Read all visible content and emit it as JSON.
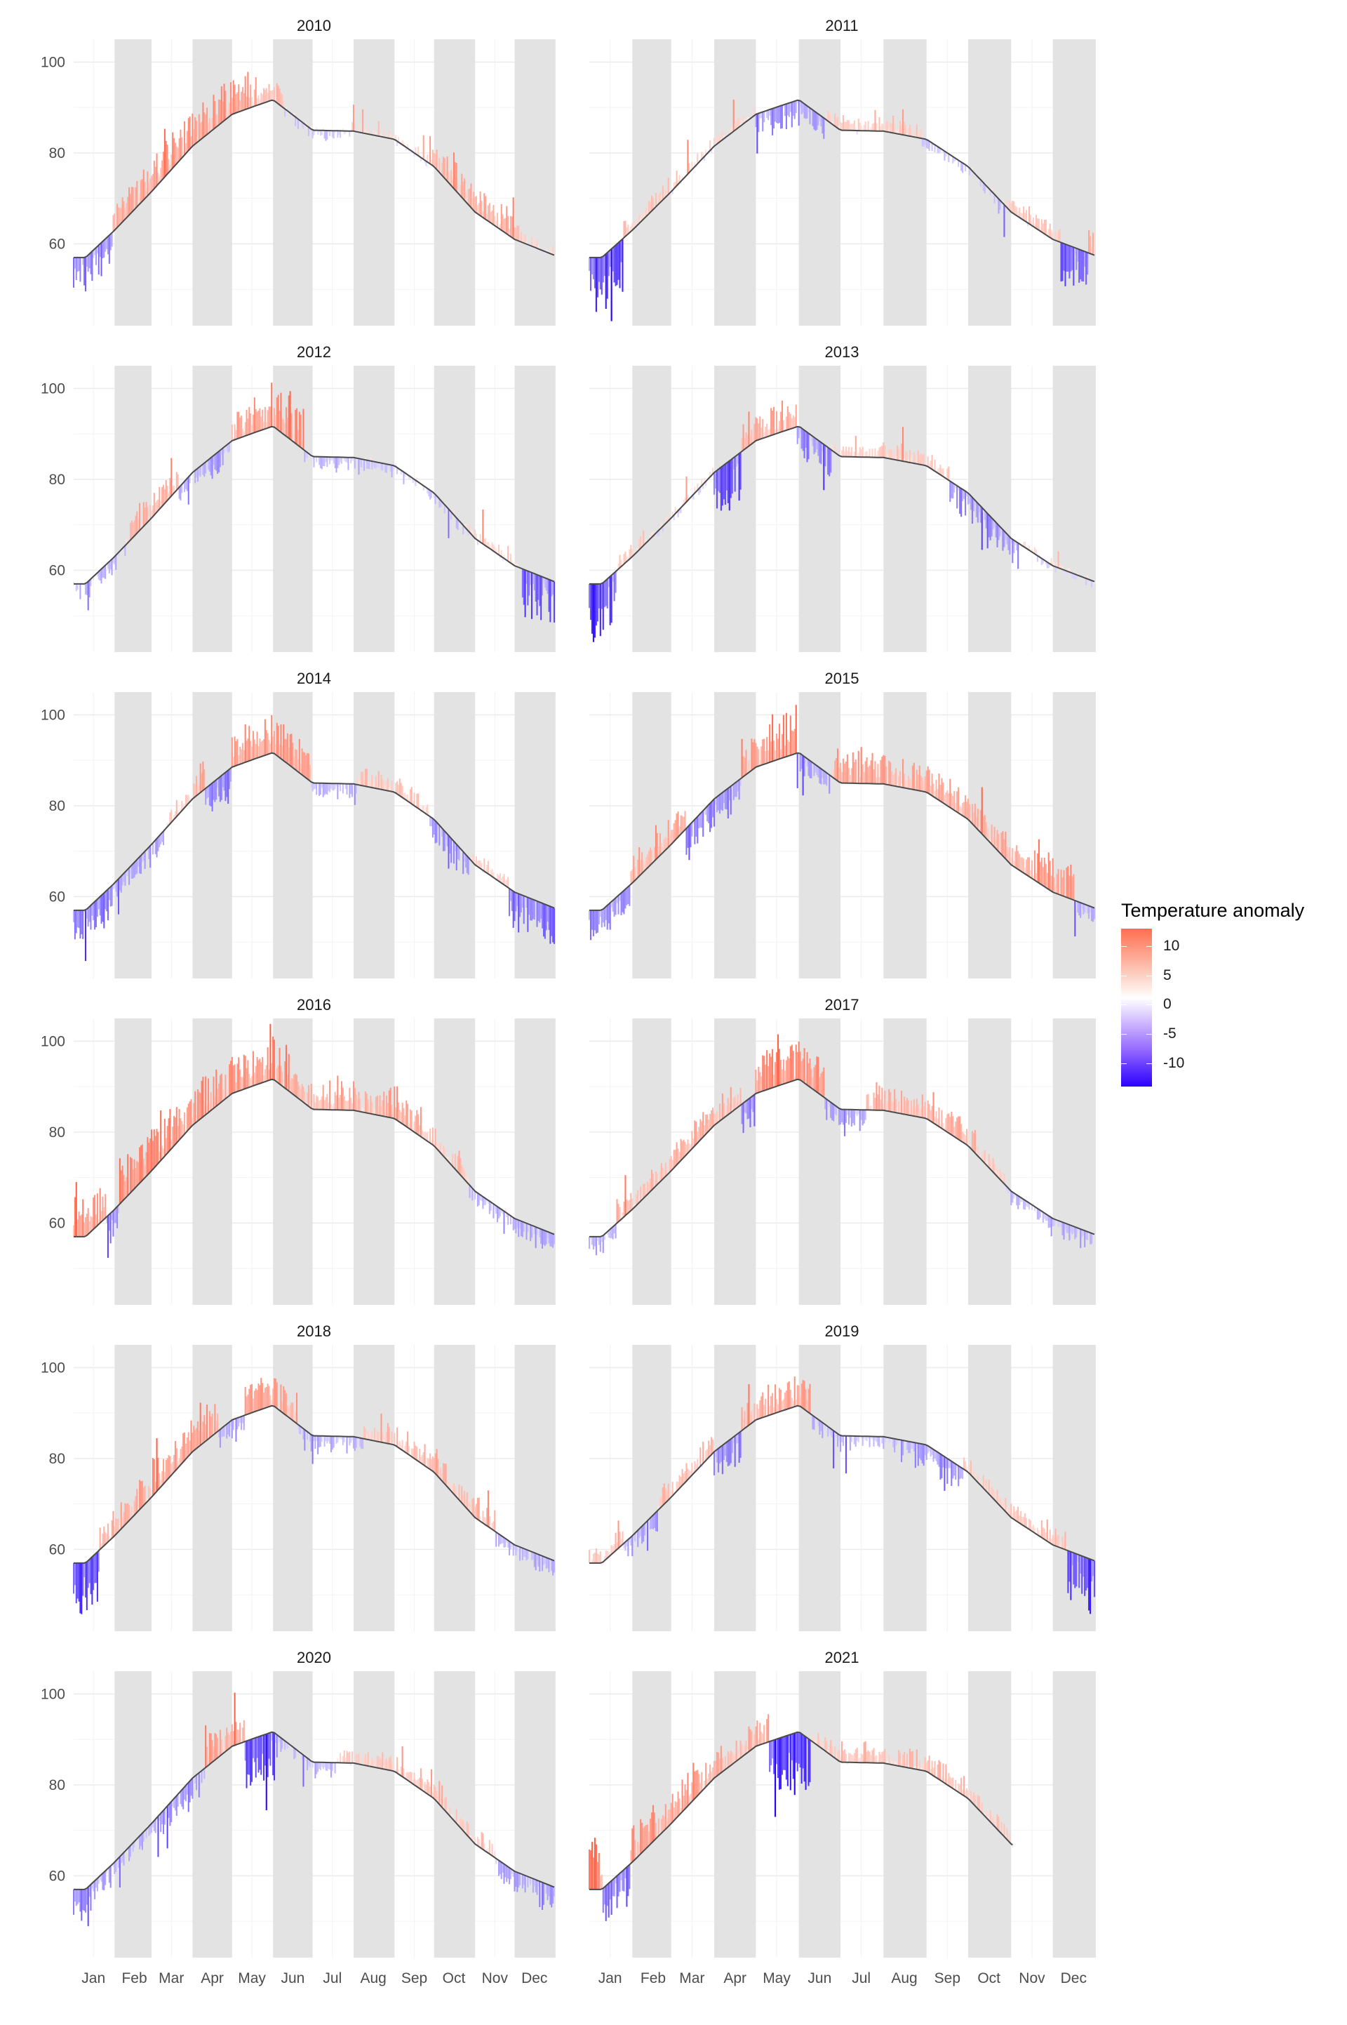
{
  "chart_data": {
    "type": "bar",
    "description_of_marks": "Daily temperature anomaly bars relative to a normal-temperature line, one panel per year",
    "years": [
      "2010",
      "2011",
      "2012",
      "2013",
      "2014",
      "2015",
      "2016",
      "2017",
      "2018",
      "2019",
      "2020",
      "2021"
    ],
    "layout": "facet grid, 2 columns x 6 rows",
    "x_tick_labels": [
      "Jan",
      "Feb",
      "Mar",
      "Apr",
      "May",
      "Jun",
      "Jul",
      "Aug",
      "Sep",
      "Oct",
      "Nov",
      "Dec"
    ],
    "y_ticks": [
      60,
      80,
      100
    ],
    "ylim": [
      42,
      105
    ],
    "normal_line": {
      "days": [
        1,
        10,
        32,
        60,
        91,
        121,
        140,
        152,
        182,
        213,
        244,
        274,
        305,
        335,
        365
      ],
      "values": [
        57,
        57,
        63,
        71.5,
        81.5,
        88.5,
        90.5,
        91.7,
        85,
        84.8,
        83,
        77,
        67,
        61,
        57.5
      ]
    },
    "shaded_months": [
      "Feb",
      "Apr",
      "Jun",
      "Aug",
      "Oct",
      "Dec"
    ],
    "anomaly_profiles": {
      "2010": [
        [
          0,
          30,
          -5
        ],
        [
          31,
          60,
          5
        ],
        [
          61,
          140,
          6
        ],
        [
          141,
          160,
          3
        ],
        [
          161,
          210,
          -1
        ],
        [
          211,
          270,
          1
        ],
        [
          271,
          340,
          4
        ],
        [
          341,
          365,
          1
        ]
      ],
      "2011": [
        [
          0,
          25,
          -11
        ],
        [
          26,
          60,
          2
        ],
        [
          61,
          120,
          1
        ],
        [
          121,
          170,
          -4
        ],
        [
          171,
          240,
          2
        ],
        [
          241,
          300,
          -1
        ],
        [
          301,
          340,
          2
        ],
        [
          341,
          360,
          -7
        ],
        [
          361,
          365,
          5
        ]
      ],
      "2012": [
        [
          0,
          40,
          -2
        ],
        [
          41,
          80,
          4
        ],
        [
          81,
          120,
          -3
        ],
        [
          121,
          150,
          5
        ],
        [
          151,
          175,
          8
        ],
        [
          176,
          240,
          -2
        ],
        [
          241,
          300,
          -1
        ],
        [
          301,
          340,
          1
        ],
        [
          341,
          365,
          -8
        ]
      ],
      "2013": [
        [
          0,
          20,
          -10
        ],
        [
          21,
          40,
          2
        ],
        [
          41,
          90,
          0
        ],
        [
          91,
          110,
          -8
        ],
        [
          111,
          150,
          4
        ],
        [
          151,
          175,
          -5
        ],
        [
          176,
          260,
          2
        ],
        [
          261,
          310,
          -4
        ],
        [
          311,
          365,
          0
        ]
      ],
      "2014": [
        [
          0,
          30,
          -5
        ],
        [
          31,
          70,
          -3
        ],
        [
          71,
          100,
          3
        ],
        [
          101,
          120,
          -5
        ],
        [
          121,
          180,
          6
        ],
        [
          181,
          215,
          -2
        ],
        [
          216,
          270,
          3
        ],
        [
          271,
          300,
          -4
        ],
        [
          301,
          330,
          2
        ],
        [
          331,
          365,
          -6
        ]
      ],
      "2015": [
        [
          0,
          30,
          -5
        ],
        [
          31,
          70,
          4
        ],
        [
          71,
          110,
          -5
        ],
        [
          111,
          130,
          5
        ],
        [
          131,
          150,
          8
        ],
        [
          151,
          175,
          -3
        ],
        [
          176,
          320,
          5
        ],
        [
          321,
          350,
          6
        ],
        [
          351,
          365,
          -2
        ]
      ],
      "2016": [
        [
          0,
          25,
          6
        ],
        [
          26,
          35,
          -5
        ],
        [
          36,
          80,
          8
        ],
        [
          81,
          150,
          6
        ],
        [
          151,
          170,
          8
        ],
        [
          171,
          265,
          4
        ],
        [
          266,
          300,
          2
        ],
        [
          301,
          335,
          -2
        ],
        [
          336,
          365,
          -3
        ]
      ],
      "2017": [
        [
          0,
          20,
          -3
        ],
        [
          21,
          70,
          3
        ],
        [
          71,
          110,
          4
        ],
        [
          111,
          120,
          -6
        ],
        [
          121,
          170,
          7
        ],
        [
          171,
          200,
          -3
        ],
        [
          201,
          280,
          4
        ],
        [
          281,
          300,
          2
        ],
        [
          301,
          330,
          -2
        ],
        [
          331,
          365,
          -3
        ]
      ],
      "2018": [
        [
          0,
          20,
          -9
        ],
        [
          21,
          60,
          4
        ],
        [
          61,
          110,
          6
        ],
        [
          111,
          130,
          -3
        ],
        [
          131,
          170,
          6
        ],
        [
          171,
          220,
          -2
        ],
        [
          221,
          290,
          3
        ],
        [
          291,
          320,
          3
        ],
        [
          321,
          365,
          -2
        ]
      ],
      "2019": [
        [
          0,
          25,
          2
        ],
        [
          26,
          50,
          -3
        ],
        [
          51,
          90,
          3
        ],
        [
          91,
          110,
          -5
        ],
        [
          111,
          160,
          5
        ],
        [
          161,
          230,
          -2
        ],
        [
          231,
          270,
          -4
        ],
        [
          271,
          320,
          2
        ],
        [
          321,
          345,
          3
        ],
        [
          346,
          365,
          -9
        ]
      ],
      "2020": [
        [
          0,
          25,
          -5
        ],
        [
          26,
          60,
          -2
        ],
        [
          61,
          100,
          -4
        ],
        [
          101,
          130,
          5
        ],
        [
          131,
          155,
          -10
        ],
        [
          156,
          200,
          -2
        ],
        [
          201,
          250,
          2
        ],
        [
          251,
          280,
          3
        ],
        [
          281,
          320,
          2
        ],
        [
          321,
          350,
          -3
        ],
        [
          351,
          365,
          -4
        ]
      ],
      "2021": [
        [
          0,
          10,
          9
        ],
        [
          11,
          30,
          -7
        ],
        [
          31,
          80,
          6
        ],
        [
          81,
          130,
          4
        ],
        [
          131,
          160,
          -10
        ],
        [
          161,
          180,
          2
        ],
        [
          181,
          260,
          3
        ],
        [
          261,
          305,
          2
        ]
      ]
    },
    "year_end_day": {
      "2021": 306
    }
  },
  "legend": {
    "title": "Temperature anomaly",
    "ticks": [
      {
        "label": "10",
        "value": 10
      },
      {
        "label": "5",
        "value": 5
      },
      {
        "label": "0",
        "value": 0
      },
      {
        "label": "-5",
        "value": -5
      },
      {
        "label": "-10",
        "value": -10
      }
    ],
    "range": [
      13,
      -14
    ]
  },
  "colors": {
    "warm": "#ff5a3c",
    "cold": "#2200ff",
    "neutral": "#ffffff",
    "line": "#4a4a4a",
    "shade": "#e3e3e3",
    "grid": "#ebebeb"
  }
}
